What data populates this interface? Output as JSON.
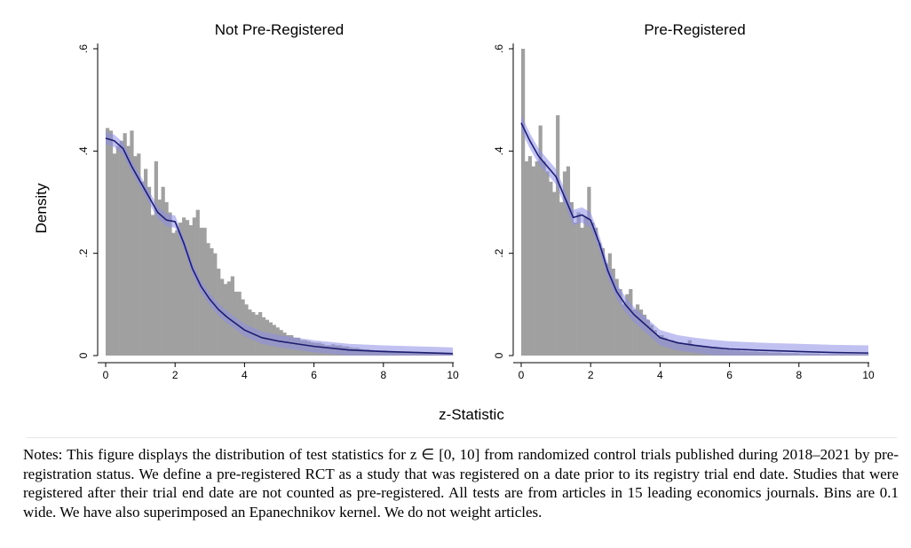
{
  "figure": {
    "ylabel": "Density",
    "xlabel": "z-Statistic",
    "colors": {
      "bars": "#a0a0a0",
      "kernel_line": "#1c1c6e",
      "kernel_band": "#8e8ee6"
    }
  },
  "chart_data": [
    {
      "type": "bar",
      "title": "Not Pre-Registered",
      "bin_width": 0.1,
      "xlim": [
        0,
        10
      ],
      "ylim": [
        0,
        0.6
      ],
      "x_ticks": [
        "0",
        "2",
        "4",
        "6",
        "8",
        "10"
      ],
      "y_ticks": [
        "0",
        ".2",
        ".4",
        ".6"
      ],
      "bins_start_x": 0,
      "values": [
        0.445,
        0.44,
        0.395,
        0.41,
        0.42,
        0.435,
        0.41,
        0.44,
        0.39,
        0.395,
        0.34,
        0.365,
        0.33,
        0.275,
        0.38,
        0.305,
        0.33,
        0.3,
        0.28,
        0.24,
        0.245,
        0.26,
        0.27,
        0.265,
        0.255,
        0.27,
        0.285,
        0.25,
        0.25,
        0.22,
        0.21,
        0.2,
        0.17,
        0.15,
        0.14,
        0.145,
        0.155,
        0.125,
        0.125,
        0.11,
        0.1,
        0.09,
        0.085,
        0.08,
        0.085,
        0.075,
        0.07,
        0.065,
        0.06,
        0.055,
        0.05,
        0.045,
        0.04,
        0.04,
        0.035,
        0.035,
        0.03,
        0.03,
        0.028,
        0.026,
        0.025,
        0.025,
        0.023,
        0.02,
        0.02,
        0.022,
        0.02,
        0.02,
        0.018,
        0.018,
        0.016,
        0.015,
        0.015,
        0.013,
        0.012,
        0.012,
        0.011,
        0.01,
        0.01,
        0.01,
        0.01,
        0.009,
        0.009,
        0.008,
        0.008,
        0.007,
        0.007,
        0.007,
        0.006,
        0.006,
        0.006,
        0.005,
        0.005,
        0.005,
        0.005,
        0.005,
        0.004,
        0.004,
        0.004,
        0.004
      ],
      "kernel": {
        "x": [
          0,
          0.25,
          0.5,
          0.75,
          1,
          1.25,
          1.5,
          1.75,
          2,
          2.25,
          2.5,
          2.75,
          3,
          3.25,
          3.5,
          4,
          4.5,
          5,
          5.5,
          6,
          7,
          8,
          9,
          10
        ],
        "y": [
          0.425,
          0.42,
          0.405,
          0.37,
          0.34,
          0.31,
          0.28,
          0.265,
          0.262,
          0.22,
          0.17,
          0.135,
          0.11,
          0.09,
          0.075,
          0.05,
          0.035,
          0.028,
          0.023,
          0.018,
          0.011,
          0.008,
          0.006,
          0.004
        ],
        "band": 0.012
      }
    },
    {
      "type": "bar",
      "title": "Pre-Registered",
      "bin_width": 0.1,
      "xlim": [
        0,
        10
      ],
      "ylim": [
        0,
        0.6
      ],
      "x_ticks": [
        "0",
        "2",
        "4",
        "6",
        "8",
        "10"
      ],
      "y_ticks": [
        "0",
        ".2",
        ".4",
        ".6"
      ],
      "bins_start_x": 0,
      "values": [
        0.6,
        0.38,
        0.39,
        0.37,
        0.38,
        0.45,
        0.38,
        0.36,
        0.34,
        0.32,
        0.47,
        0.3,
        0.36,
        0.37,
        0.3,
        0.26,
        0.28,
        0.25,
        0.27,
        0.33,
        0.26,
        0.25,
        0.22,
        0.21,
        0.18,
        0.2,
        0.17,
        0.15,
        0.13,
        0.1,
        0.12,
        0.13,
        0.09,
        0.1,
        0.09,
        0.08,
        0.07,
        0.06,
        0.05,
        0.04,
        0.04,
        0.035,
        0.03,
        0.03,
        0.028,
        0.026,
        0.024,
        0.022,
        0.03,
        0.02,
        0.019,
        0.018,
        0.017,
        0.016,
        0.015,
        0.015,
        0.014,
        0.013,
        0.012,
        0.012,
        0.011,
        0.01,
        0.01,
        0.009,
        0.009,
        0.008,
        0.008,
        0.008,
        0.007,
        0.007,
        0.007,
        0.006,
        0.006,
        0.006,
        0.006,
        0.005,
        0.005,
        0.005,
        0.005,
        0.005,
        0.004,
        0.004,
        0.004,
        0.004,
        0.004,
        0.004,
        0.003,
        0.003,
        0.003,
        0.003,
        0.003,
        0.003,
        0.003,
        0.003,
        0.003,
        0.003,
        0.003,
        0.003,
        0.003,
        0.003
      ],
      "kernel": {
        "x": [
          0,
          0.25,
          0.5,
          0.75,
          1,
          1.25,
          1.5,
          1.75,
          2,
          2.25,
          2.5,
          2.75,
          3,
          3.25,
          3.5,
          4,
          4.5,
          5,
          5.5,
          6,
          7,
          8,
          9,
          10
        ],
        "y": [
          0.455,
          0.42,
          0.39,
          0.37,
          0.35,
          0.31,
          0.27,
          0.275,
          0.265,
          0.22,
          0.165,
          0.125,
          0.1,
          0.08,
          0.065,
          0.035,
          0.025,
          0.02,
          0.016,
          0.013,
          0.01,
          0.008,
          0.006,
          0.005
        ],
        "band": 0.015
      }
    }
  ],
  "notes": "Notes: This figure displays the distribution of test statistics for z ∈ [0, 10] from randomized control trials published during 2018–2021 by pre-registration status. We define a pre-registered RCT as a study that was registered on a date prior to its registry trial end date. Studies that were registered after their trial end date are not counted as pre-registered. All tests are from articles in 15 leading economics journals. Bins are 0.1 wide. We have also superimposed an Epanechnikov kernel. We do not weight articles."
}
